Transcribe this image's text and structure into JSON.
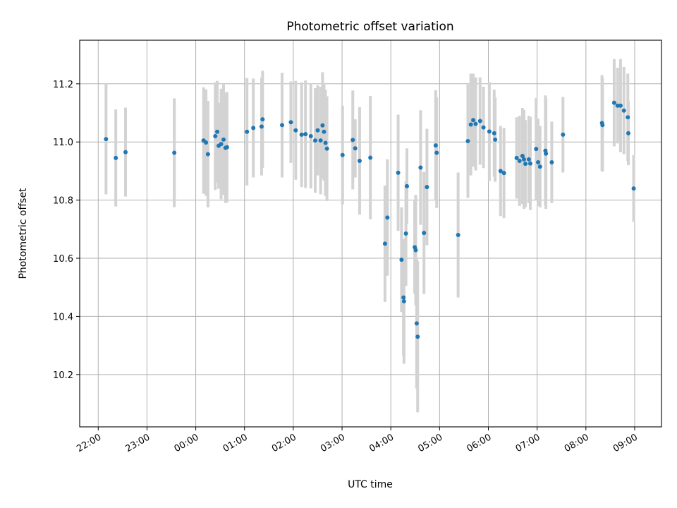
{
  "chart_data": {
    "type": "scatter",
    "title": "Photometric offset variation",
    "xlabel": "UTC time",
    "ylabel": "Photometric offset",
    "x_unit": "hours after 22:00 UTC",
    "xlim": [
      -0.38,
      11.55
    ],
    "ylim": [
      10.02,
      11.35
    ],
    "xticks": [
      {
        "value": 0,
        "label": "22:00"
      },
      {
        "value": 1,
        "label": "23:00"
      },
      {
        "value": 2,
        "label": "00:00"
      },
      {
        "value": 3,
        "label": "01:00"
      },
      {
        "value": 4,
        "label": "02:00"
      },
      {
        "value": 5,
        "label": "03:00"
      },
      {
        "value": 6,
        "label": "04:00"
      },
      {
        "value": 7,
        "label": "05:00"
      },
      {
        "value": 8,
        "label": "06:00"
      },
      {
        "value": 9,
        "label": "07:00"
      },
      {
        "value": 10,
        "label": "08:00"
      },
      {
        "value": 11,
        "label": "09:00"
      }
    ],
    "yticks": [
      {
        "value": 10.2,
        "label": "10.2"
      },
      {
        "value": 10.4,
        "label": "10.4"
      },
      {
        "value": 10.6,
        "label": "10.6"
      },
      {
        "value": 10.8,
        "label": "10.8"
      },
      {
        "value": 11.0,
        "label": "11.0"
      },
      {
        "value": 11.2,
        "label": "11.2"
      }
    ],
    "grid": true,
    "legend": "none",
    "marker_color": "#1f77b4",
    "errorbar_color": "#d3d3d3",
    "points": [
      [
        0.16,
        11.01,
        0.19
      ],
      [
        0.36,
        10.945,
        0.167
      ],
      [
        0.56,
        10.965,
        0.153
      ],
      [
        1.56,
        10.963,
        0.187
      ],
      [
        2.16,
        11.005,
        0.183
      ],
      [
        2.21,
        10.998,
        0.183
      ],
      [
        2.25,
        10.958,
        0.183
      ],
      [
        2.4,
        11.02,
        0.185
      ],
      [
        2.44,
        11.035,
        0.175
      ],
      [
        2.47,
        10.987,
        0.148
      ],
      [
        2.52,
        10.993,
        0.19
      ],
      [
        2.57,
        11.008,
        0.19
      ],
      [
        2.61,
        10.98,
        0.19
      ],
      [
        2.64,
        10.982,
        0.19
      ],
      [
        3.05,
        11.035,
        0.185
      ],
      [
        3.18,
        11.048,
        0.17
      ],
      [
        3.35,
        11.053,
        0.168
      ],
      [
        3.37,
        11.078,
        0.167
      ],
      [
        3.77,
        11.058,
        0.18
      ],
      [
        3.95,
        11.068,
        0.14
      ],
      [
        4.05,
        11.04,
        0.17
      ],
      [
        4.17,
        11.025,
        0.18
      ],
      [
        4.25,
        11.027,
        0.185
      ],
      [
        4.36,
        11.02,
        0.18
      ],
      [
        4.45,
        11.005,
        0.18
      ],
      [
        4.5,
        11.04,
        0.155
      ],
      [
        4.56,
        11.005,
        0.185
      ],
      [
        4.6,
        11.057,
        0.183
      ],
      [
        4.63,
        11.035,
        0.168
      ],
      [
        4.66,
        10.997,
        0.183
      ],
      [
        4.69,
        10.977,
        0.18
      ],
      [
        5.01,
        10.955,
        0.17
      ],
      [
        5.22,
        11.007,
        0.17
      ],
      [
        5.27,
        10.978,
        0.1
      ],
      [
        5.36,
        10.935,
        0.185
      ],
      [
        5.58,
        10.946,
        0.212
      ],
      [
        5.88,
        10.65,
        0.2
      ],
      [
        5.93,
        10.74,
        0.2
      ],
      [
        6.15,
        10.894,
        0.2
      ],
      [
        6.22,
        10.595,
        0.18
      ],
      [
        6.26,
        10.465,
        0.2
      ],
      [
        6.27,
        10.452,
        0.215
      ],
      [
        6.31,
        10.685,
        0.18
      ],
      [
        6.33,
        10.848,
        0.13
      ],
      [
        6.49,
        10.638,
        0.16
      ],
      [
        6.51,
        10.628,
        0.19
      ],
      [
        6.53,
        10.376,
        0.224
      ],
      [
        6.55,
        10.33,
        0.26
      ],
      [
        6.61,
        10.912,
        0.197
      ],
      [
        6.68,
        10.687,
        0.21
      ],
      [
        6.74,
        10.845,
        0.2
      ],
      [
        6.92,
        10.988,
        0.19
      ],
      [
        6.94,
        10.963,
        0.19
      ],
      [
        7.38,
        10.68,
        0.215
      ],
      [
        7.58,
        11.003,
        0.195
      ],
      [
        7.64,
        11.06,
        0.175
      ],
      [
        7.69,
        11.075,
        0.16
      ],
      [
        7.74,
        11.062,
        0.16
      ],
      [
        7.83,
        11.072,
        0.15
      ],
      [
        7.9,
        11.05,
        0.14
      ],
      [
        8.02,
        11.036,
        0.17
      ],
      [
        8.12,
        11.03,
        0.15
      ],
      [
        8.14,
        11.008,
        0.145
      ],
      [
        8.25,
        10.9,
        0.155
      ],
      [
        8.32,
        10.893,
        0.155
      ],
      [
        8.58,
        10.945,
        0.14
      ],
      [
        8.64,
        10.935,
        0.155
      ],
      [
        8.7,
        10.952,
        0.165
      ],
      [
        8.73,
        10.94,
        0.17
      ],
      [
        8.76,
        10.925,
        0.15
      ],
      [
        8.83,
        10.94,
        0.15
      ],
      [
        8.86,
        10.926,
        0.16
      ],
      [
        8.98,
        10.976,
        0.175
      ],
      [
        9.02,
        10.93,
        0.15
      ],
      [
        9.06,
        10.915,
        0.14
      ],
      [
        9.17,
        10.97,
        0.19
      ],
      [
        9.18,
        10.96,
        0.19
      ],
      [
        9.3,
        10.93,
        0.14
      ],
      [
        9.53,
        11.025,
        0.13
      ],
      [
        10.33,
        11.065,
        0.165
      ],
      [
        10.34,
        11.058,
        0.16
      ],
      [
        10.58,
        11.135,
        0.15
      ],
      [
        10.65,
        11.125,
        0.13
      ],
      [
        10.71,
        11.125,
        0.16
      ],
      [
        10.78,
        11.108,
        0.15
      ],
      [
        10.86,
        11.085,
        0.15
      ],
      [
        10.87,
        11.03,
        0.11
      ],
      [
        10.98,
        10.84,
        0.115
      ]
    ]
  }
}
